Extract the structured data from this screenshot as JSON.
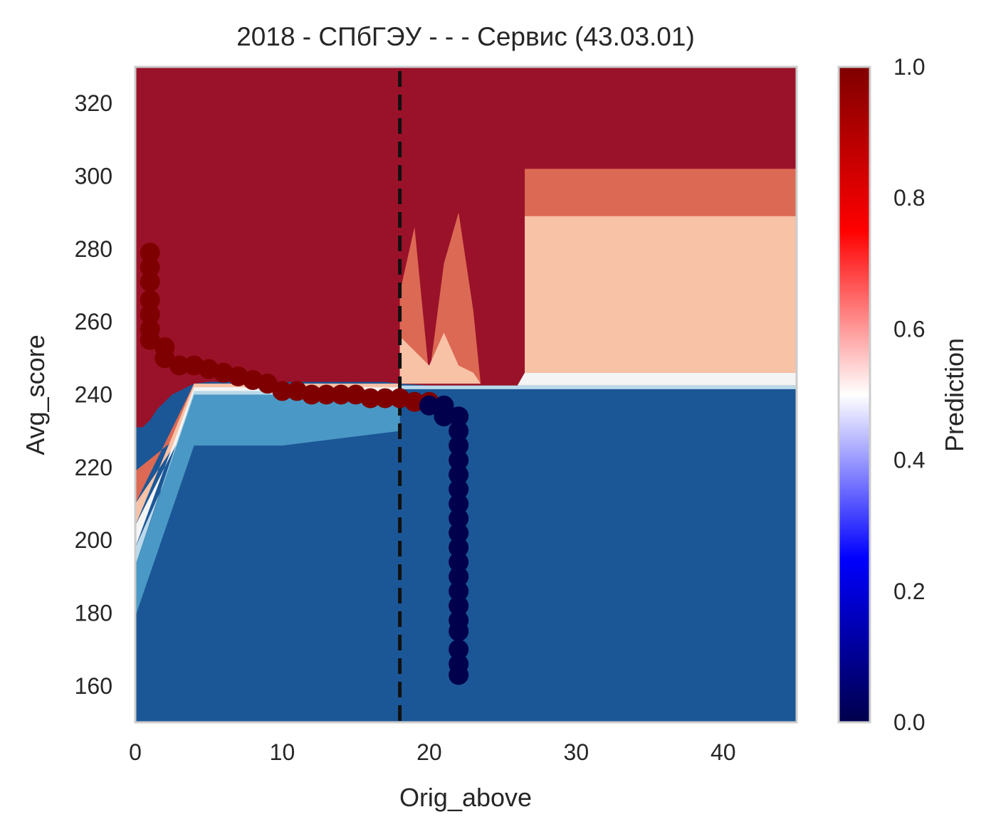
{
  "chart_data": {
    "type": "heatmap",
    "title": "2018 - СПбГЭУ - - - Сервис (43.03.01)",
    "xlabel": "Orig_above",
    "ylabel": "Avg_score",
    "xlim": [
      0,
      45
    ],
    "ylim": [
      150,
      330
    ],
    "x_ticks": [
      0,
      10,
      20,
      30,
      40
    ],
    "y_ticks": [
      160,
      180,
      200,
      220,
      240,
      260,
      280,
      300,
      320
    ],
    "grid": false,
    "colorbar": {
      "label": "Prediction",
      "range": [
        0,
        1
      ],
      "ticks": [
        0.0,
        0.2,
        0.4,
        0.6,
        0.8,
        1.0
      ],
      "tick_labels": [
        "0.0",
        "0.2",
        "0.4",
        "0.6",
        "0.8",
        "1.0"
      ],
      "colormap": "seismic"
    },
    "contour_levels": [
      {
        "range": [
          0.0,
          0.1
        ],
        "color": "#1b5796"
      },
      {
        "range": [
          0.1,
          0.2
        ],
        "color": "#4a98c5"
      },
      {
        "range": [
          0.2,
          0.3
        ],
        "color": "#bad9ea"
      },
      {
        "range": [
          0.3,
          0.4
        ],
        "color": "#f4f4f4"
      },
      {
        "range": [
          0.4,
          0.5
        ],
        "color": "#f8c2a7"
      },
      {
        "range": [
          0.5,
          0.6
        ],
        "color": "#dc6954"
      },
      {
        "range": [
          0.6,
          1.0
        ],
        "color": "#9a1229"
      }
    ],
    "vertical_line": {
      "x": 18,
      "style": "dashed",
      "color": "#111111"
    },
    "colors": {
      "pos_point": "#7f0000",
      "neg_point": "#00004c"
    },
    "boundary": [
      [
        0,
        231
      ],
      [
        0.5,
        231
      ],
      [
        1,
        233
      ],
      [
        1.5,
        236
      ],
      [
        2,
        238
      ],
      [
        2.5,
        240
      ],
      [
        3,
        241
      ],
      [
        3.5,
        242
      ],
      [
        4,
        243
      ],
      [
        5,
        243.5
      ],
      [
        7,
        243.5
      ],
      [
        10,
        243.5
      ],
      [
        14,
        243.5
      ],
      [
        17,
        243.5
      ],
      [
        18,
        243
      ],
      [
        20,
        242.5
      ],
      [
        25,
        242.5
      ],
      [
        45,
        242.5
      ]
    ],
    "regions": [
      {
        "color": "#dc6954",
        "polygon": [
          [
            0,
            210
          ],
          [
            4,
            243
          ],
          [
            18,
            243
          ],
          [
            18,
            232
          ],
          [
            4,
            232
          ],
          [
            0,
            219
          ]
        ]
      },
      {
        "color": "#f8c2a7",
        "polygon": [
          [
            0,
            204
          ],
          [
            4,
            243
          ],
          [
            18,
            243
          ],
          [
            18,
            236
          ],
          [
            4,
            234
          ],
          [
            0,
            210
          ]
        ]
      },
      {
        "color": "#f4f4f4",
        "polygon": [
          [
            0,
            198
          ],
          [
            4,
            242
          ],
          [
            18,
            242
          ],
          [
            18,
            237
          ],
          [
            4,
            236
          ],
          [
            0,
            204
          ]
        ]
      },
      {
        "color": "#bad9ea",
        "polygon": [
          [
            0,
            193
          ],
          [
            4,
            241
          ],
          [
            18,
            241
          ],
          [
            18,
            237
          ],
          [
            4,
            234
          ],
          [
            0,
            198
          ]
        ]
      },
      {
        "color": "#4a98c5",
        "polygon": [
          [
            0,
            179
          ],
          [
            4,
            226
          ],
          [
            10,
            226
          ],
          [
            18,
            230
          ],
          [
            18,
            240
          ],
          [
            4,
            240
          ],
          [
            0,
            193
          ]
        ]
      },
      {
        "color": "#dc6954",
        "polygon": [
          [
            18,
            243
          ],
          [
            18,
            268
          ],
          [
            19,
            286
          ],
          [
            20,
            245
          ],
          [
            21,
            276
          ],
          [
            22,
            290
          ],
          [
            23,
            263
          ],
          [
            23.5,
            243
          ]
        ]
      },
      {
        "color": "#f8c2a7",
        "polygon": [
          [
            18,
            243
          ],
          [
            18,
            256
          ],
          [
            20,
            248
          ],
          [
            21,
            257
          ],
          [
            22,
            248
          ],
          [
            23,
            246
          ],
          [
            23.5,
            243
          ]
        ]
      },
      {
        "color": "#dc6954",
        "polygon": [
          [
            26.5,
            246
          ],
          [
            26.5,
            302
          ],
          [
            45,
            302
          ],
          [
            45,
            246
          ]
        ]
      },
      {
        "color": "#f8c2a7",
        "polygon": [
          [
            26.5,
            246
          ],
          [
            26.5,
            289
          ],
          [
            45,
            289
          ],
          [
            45,
            246
          ]
        ]
      },
      {
        "color": "#f4f4f4",
        "polygon": [
          [
            26,
            242.5
          ],
          [
            26.5,
            246
          ],
          [
            45,
            246
          ],
          [
            45,
            242.5
          ]
        ]
      },
      {
        "color": "#bad9ea",
        "polygon": [
          [
            18,
            242.5
          ],
          [
            45,
            242.5
          ],
          [
            45,
            241.5
          ],
          [
            18,
            241.5
          ]
        ]
      }
    ],
    "series": [
      {
        "type": "scatter",
        "class": 1,
        "points": [
          [
            1,
            279
          ],
          [
            1,
            275
          ],
          [
            1,
            271
          ],
          [
            1,
            266
          ],
          [
            1,
            262
          ],
          [
            1,
            258
          ],
          [
            1,
            255
          ],
          [
            2,
            253
          ],
          [
            2,
            250
          ],
          [
            3,
            248
          ],
          [
            4,
            248
          ],
          [
            5,
            247
          ],
          [
            6,
            246
          ],
          [
            7,
            245
          ],
          [
            8,
            244
          ],
          [
            9,
            243
          ],
          [
            10,
            241
          ],
          [
            11,
            241
          ],
          [
            12,
            240
          ],
          [
            13,
            240
          ],
          [
            14,
            240
          ],
          [
            15,
            240
          ],
          [
            16,
            239
          ],
          [
            17,
            239
          ],
          [
            18,
            239
          ],
          [
            19,
            238
          ],
          [
            20,
            238
          ]
        ]
      },
      {
        "type": "scatter",
        "class": 0,
        "points": [
          [
            20,
            237
          ],
          [
            21,
            237
          ],
          [
            21,
            234
          ],
          [
            22,
            234
          ],
          [
            22,
            230
          ],
          [
            22,
            226
          ],
          [
            22,
            222
          ],
          [
            22,
            218
          ],
          [
            22,
            214
          ],
          [
            22,
            210
          ],
          [
            22,
            206
          ],
          [
            22,
            202
          ],
          [
            22,
            198
          ],
          [
            22,
            194
          ],
          [
            22,
            190
          ],
          [
            22,
            186
          ],
          [
            22,
            182
          ],
          [
            22,
            178
          ],
          [
            22,
            175
          ],
          [
            22,
            170
          ],
          [
            22,
            166
          ],
          [
            22,
            163
          ]
        ]
      }
    ]
  }
}
